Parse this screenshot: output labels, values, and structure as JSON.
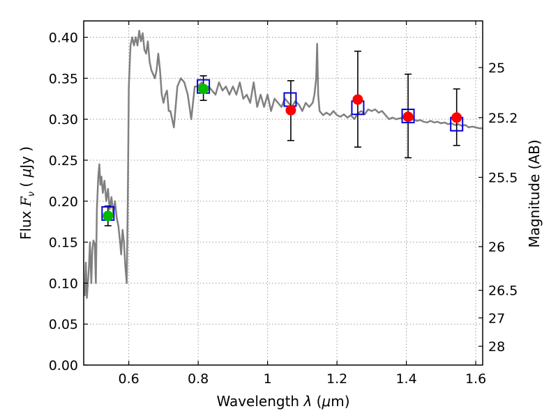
{
  "chart_data": {
    "type": "scatter",
    "xlabel_prefix": "Wavelength  ",
    "xlabel_symbol": "λ",
    "xlabel_unit_open": " (",
    "xlabel_mu": "μ",
    "xlabel_unit_close": "m)",
    "ylabel_prefix": "Flux  ",
    "ylabel_symbol": "F",
    "ylabel_sub": "ν",
    "ylabel_open": "  (  ",
    "ylabel_mu": "μ",
    "ylabel_close": "Jy  )",
    "ylabel_right": "Magnitude (AB)",
    "xlim": [
      0.47,
      1.62
    ],
    "ylim": [
      0.0,
      0.42
    ],
    "x_ticks": [
      {
        "value": 0.6,
        "label": "0.6"
      },
      {
        "value": 0.8,
        "label": "0.8"
      },
      {
        "value": 1.0,
        "label": "1"
      },
      {
        "value": 1.2,
        "label": "1.2"
      },
      {
        "value": 1.4,
        "label": "1.4"
      },
      {
        "value": 1.6,
        "label": "1.6"
      }
    ],
    "y_ticks": [
      {
        "value": 0.0,
        "label": "0.00"
      },
      {
        "value": 0.05,
        "label": "0.05"
      },
      {
        "value": 0.1,
        "label": "0.10"
      },
      {
        "value": 0.15,
        "label": "0.15"
      },
      {
        "value": 0.2,
        "label": "0.20"
      },
      {
        "value": 0.25,
        "label": "0.25"
      },
      {
        "value": 0.3,
        "label": "0.30"
      },
      {
        "value": 0.35,
        "label": "0.35"
      },
      {
        "value": 0.4,
        "label": "0.40"
      }
    ],
    "mag_ticks": [
      {
        "value": 25,
        "label": "25"
      },
      {
        "value": 25.2,
        "label": "25.2"
      },
      {
        "value": 25.5,
        "label": "25.5"
      },
      {
        "value": 26,
        "label": "26"
      },
      {
        "value": 26.5,
        "label": "26.5"
      },
      {
        "value": 27,
        "label": "27"
      },
      {
        "value": 28,
        "label": "28"
      }
    ],
    "grid": true,
    "colors": {
      "model": "#808080",
      "observed_green": "#00bb00",
      "observed_red": "#ff0000",
      "model_box": "#0000dd",
      "errorbar": "#000000"
    },
    "model_spectrum": {
      "x": [
        0.47,
        0.473,
        0.476,
        0.479,
        0.482,
        0.485,
        0.488,
        0.492,
        0.495,
        0.498,
        0.502,
        0.505,
        0.508,
        0.512,
        0.515,
        0.518,
        0.521,
        0.525,
        0.53,
        0.535,
        0.54,
        0.545,
        0.55,
        0.555,
        0.56,
        0.565,
        0.57,
        0.575,
        0.578,
        0.582,
        0.586,
        0.59,
        0.594,
        0.597,
        0.6,
        0.605,
        0.61,
        0.615,
        0.62,
        0.625,
        0.63,
        0.635,
        0.64,
        0.645,
        0.65,
        0.655,
        0.66,
        0.665,
        0.67,
        0.675,
        0.68,
        0.685,
        0.69,
        0.695,
        0.7,
        0.705,
        0.71,
        0.715,
        0.72,
        0.73,
        0.74,
        0.75,
        0.76,
        0.77,
        0.78,
        0.79,
        0.8,
        0.81,
        0.82,
        0.83,
        0.84,
        0.85,
        0.86,
        0.87,
        0.88,
        0.89,
        0.9,
        0.91,
        0.92,
        0.93,
        0.94,
        0.95,
        0.96,
        0.97,
        0.98,
        0.99,
        1.0,
        1.01,
        1.02,
        1.03,
        1.04,
        1.05,
        1.06,
        1.07,
        1.08,
        1.09,
        1.1,
        1.11,
        1.12,
        1.13,
        1.135,
        1.14,
        1.143,
        1.146,
        1.15,
        1.16,
        1.17,
        1.18,
        1.19,
        1.2,
        1.21,
        1.22,
        1.23,
        1.24,
        1.25,
        1.26,
        1.27,
        1.28,
        1.29,
        1.3,
        1.31,
        1.32,
        1.33,
        1.34,
        1.35,
        1.36,
        1.37,
        1.38,
        1.39,
        1.4,
        1.41,
        1.42,
        1.43,
        1.44,
        1.45,
        1.46,
        1.47,
        1.48,
        1.49,
        1.5,
        1.51,
        1.52,
        1.53,
        1.54,
        1.55,
        1.56,
        1.57,
        1.58,
        1.59,
        1.6,
        1.61,
        1.62
      ],
      "y": [
        0.1,
        0.085,
        0.125,
        0.082,
        0.1,
        0.12,
        0.15,
        0.1,
        0.14,
        0.152,
        0.148,
        0.1,
        0.19,
        0.23,
        0.245,
        0.22,
        0.23,
        0.21,
        0.225,
        0.2,
        0.215,
        0.19,
        0.205,
        0.185,
        0.2,
        0.18,
        0.17,
        0.15,
        0.135,
        0.165,
        0.15,
        0.12,
        0.1,
        0.2,
        0.34,
        0.39,
        0.4,
        0.39,
        0.4,
        0.39,
        0.408,
        0.395,
        0.405,
        0.385,
        0.38,
        0.395,
        0.37,
        0.36,
        0.355,
        0.35,
        0.36,
        0.38,
        0.36,
        0.33,
        0.32,
        0.33,
        0.335,
        0.31,
        0.31,
        0.29,
        0.34,
        0.35,
        0.345,
        0.33,
        0.3,
        0.34,
        0.34,
        0.345,
        0.335,
        0.34,
        0.335,
        0.33,
        0.345,
        0.335,
        0.34,
        0.33,
        0.34,
        0.33,
        0.345,
        0.325,
        0.33,
        0.32,
        0.345,
        0.315,
        0.33,
        0.315,
        0.33,
        0.31,
        0.325,
        0.32,
        0.315,
        0.325,
        0.32,
        0.315,
        0.322,
        0.318,
        0.31,
        0.32,
        0.315,
        0.32,
        0.33,
        0.35,
        0.392,
        0.33,
        0.31,
        0.305,
        0.308,
        0.305,
        0.31,
        0.305,
        0.303,
        0.306,
        0.302,
        0.305,
        0.3,
        0.307,
        0.31,
        0.306,
        0.312,
        0.31,
        0.312,
        0.308,
        0.31,
        0.305,
        0.3,
        0.302,
        0.3,
        0.301,
        0.302,
        0.3,
        0.299,
        0.3,
        0.298,
        0.299,
        0.297,
        0.296,
        0.298,
        0.296,
        0.297,
        0.295,
        0.296,
        0.294,
        0.295,
        0.293,
        0.294,
        0.292,
        0.293,
        0.29,
        0.291,
        0.29,
        0.289,
        0.289
      ]
    },
    "model_boxes": [
      {
        "x": 0.54,
        "y": 0.185
      },
      {
        "x": 0.815,
        "y": 0.34
      },
      {
        "x": 1.065,
        "y": 0.324
      },
      {
        "x": 1.26,
        "y": 0.314
      },
      {
        "x": 1.405,
        "y": 0.304
      },
      {
        "x": 1.545,
        "y": 0.294
      }
    ],
    "observed": [
      {
        "x": 0.54,
        "y": 0.182,
        "err_low": 0.17,
        "err_high": 0.194,
        "color": "green"
      },
      {
        "x": 0.815,
        "y": 0.337,
        "err_low": 0.323,
        "err_high": 0.353,
        "color": "green"
      },
      {
        "x": 1.067,
        "y": 0.311,
        "err_low": 0.274,
        "err_high": 0.347,
        "color": "red"
      },
      {
        "x": 1.26,
        "y": 0.324,
        "err_low": 0.266,
        "err_high": 0.383,
        "color": "red"
      },
      {
        "x": 1.405,
        "y": 0.303,
        "err_low": 0.253,
        "err_high": 0.355,
        "color": "red"
      },
      {
        "x": 1.545,
        "y": 0.302,
        "err_low": 0.268,
        "err_high": 0.337,
        "color": "red"
      }
    ]
  }
}
